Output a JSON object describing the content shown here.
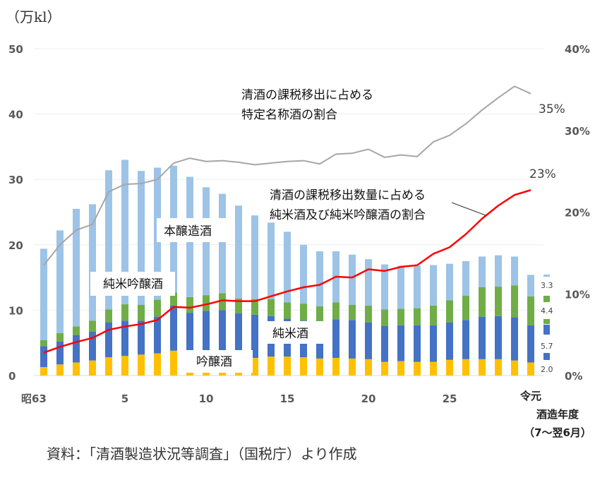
{
  "chart_data": {
    "type": "bar",
    "subtype": "stacked-bar-with-lines",
    "y_unit_label": "（万kl）",
    "ylim": [
      0,
      50
    ],
    "y_ticks": [
      "0",
      "10",
      "20",
      "30",
      "40",
      "50"
    ],
    "y2lim": [
      0,
      40
    ],
    "y2_ticks": [
      "0%",
      "10%",
      "20%",
      "30%",
      "40%"
    ],
    "x_tick_labels": [
      {
        "index": 0,
        "label": "昭63"
      },
      {
        "index": 5,
        "label": "5"
      },
      {
        "index": 10,
        "label": "10"
      },
      {
        "index": 15,
        "label": "15"
      },
      {
        "index": 20,
        "label": "20"
      },
      {
        "index": 25,
        "label": "25"
      },
      {
        "index": 30,
        "label": "令元"
      }
    ],
    "xlabel_lines": [
      "酒造年度",
      "（7～翌6月）"
    ],
    "categories": [
      "昭63",
      "平1",
      "平2",
      "平3",
      "平4",
      "平5",
      "平6",
      "平7",
      "平8",
      "平9",
      "平10",
      "平11",
      "平12",
      "平13",
      "平14",
      "平15",
      "平16",
      "平17",
      "平18",
      "平19",
      "平20",
      "平21",
      "平22",
      "平23",
      "平24",
      "平25",
      "平26",
      "平27",
      "平28",
      "平29",
      "令元"
    ],
    "series": [
      {
        "name": "吟醸酒",
        "color": "#FFC000",
        "values": [
          1.3,
          1.7,
          2.0,
          2.3,
          2.8,
          3.0,
          3.2,
          3.4,
          3.8,
          3.0,
          2.8,
          2.6,
          2.8,
          2.7,
          2.9,
          2.9,
          2.8,
          2.6,
          2.7,
          2.6,
          2.5,
          2.1,
          2.2,
          2.1,
          2.1,
          2.4,
          2.5,
          2.5,
          2.5,
          2.3,
          2.0
        ]
      },
      {
        "name": "純米酒",
        "color": "#4472C4",
        "values": [
          3.2,
          3.5,
          4.2,
          4.4,
          5.3,
          5.4,
          5.2,
          5.6,
          6.9,
          6.6,
          7.1,
          7.4,
          6.7,
          6.6,
          6.2,
          5.8,
          5.6,
          5.5,
          5.9,
          5.9,
          5.6,
          5.5,
          5.5,
          5.6,
          5.6,
          5.7,
          6.0,
          6.5,
          6.6,
          6.6,
          5.7
        ]
      },
      {
        "name": "純米吟醸酒",
        "color": "#70AD47",
        "values": [
          0.9,
          1.3,
          1.3,
          1.7,
          2.0,
          2.5,
          2.4,
          2.6,
          2.0,
          2.4,
          2.4,
          2.6,
          2.3,
          2.4,
          2.6,
          2.5,
          2.6,
          2.5,
          2.6,
          2.3,
          2.6,
          2.5,
          2.5,
          2.6,
          3.0,
          3.4,
          3.7,
          4.5,
          4.5,
          4.9,
          4.4
        ]
      },
      {
        "name": "本醸造酒",
        "color": "#9DC3E6",
        "values": [
          14.0,
          15.7,
          18.0,
          17.8,
          21.3,
          22.1,
          20.5,
          20.2,
          19.4,
          18.4,
          16.5,
          15.2,
          14.2,
          12.8,
          11.7,
          10.8,
          9.0,
          8.4,
          7.8,
          7.7,
          7.1,
          6.9,
          6.6,
          6.5,
          6.2,
          5.6,
          5.3,
          4.7,
          4.8,
          4.4,
          3.3
        ]
      }
    ],
    "lines": [
      {
        "name": "清酒の課税移出に占める特定名称酒の割合",
        "color": "#A6A6A6",
        "axis": "right",
        "values": [
          13.5,
          16.0,
          17.8,
          18.5,
          22.5,
          23.4,
          23.5,
          24.0,
          26.0,
          26.6,
          26.2,
          26.3,
          26.1,
          25.8,
          26.0,
          26.2,
          26.3,
          25.9,
          27.1,
          27.2,
          27.7,
          26.7,
          27.0,
          26.8,
          28.6,
          29.4,
          30.8,
          32.5,
          34.0,
          35.4,
          34.5
        ],
        "end_label": "35%"
      },
      {
        "name": "清酒の課税移出数量に占める純米酒及び純米吟醸酒の割合",
        "color": "#FF0000",
        "axis": "right",
        "values": [
          2.8,
          3.5,
          4.1,
          4.6,
          5.6,
          6.0,
          6.3,
          6.8,
          8.4,
          8.3,
          8.7,
          9.2,
          9.1,
          9.1,
          9.7,
          10.3,
          10.8,
          11.1,
          12.1,
          12.0,
          13.0,
          12.8,
          13.3,
          13.5,
          14.9,
          15.7,
          17.3,
          19.2,
          20.8,
          22.1,
          22.7
        ],
        "end_label": "23%"
      }
    ],
    "annotations": {
      "gray_line_label": [
        "清酒の課税移出に占める",
        "特定名称酒の割合"
      ],
      "red_line_label": [
        "清酒の課税移出数量に占める",
        "純米酒及び純米吟醸酒の割合"
      ],
      "series_labels": {
        "honjozo": "本醸造酒",
        "junmai_ginjo": "純米吟醸酒",
        "junmai": "純米酒",
        "ginjo": "吟醸酒"
      },
      "last_bar_values": [
        "3.3",
        "4.4",
        "5.7",
        "2.0"
      ]
    },
    "grid": true
  },
  "source_note": "資料：「清酒製造状況等調査」（国税庁）より作成"
}
